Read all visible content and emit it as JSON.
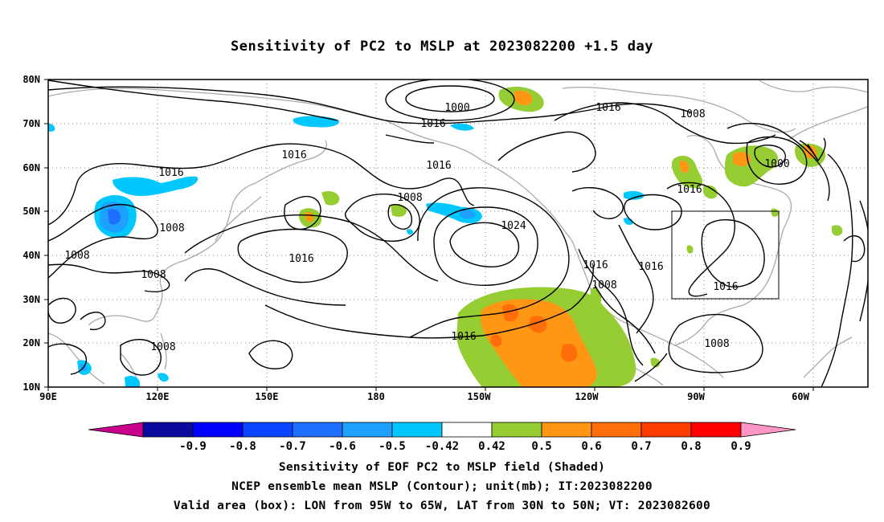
{
  "title": "Sensitivity of PC2 to MSLP at 2023082200 +1.5 day",
  "lat_ticks": [
    "80N",
    "70N",
    "60N",
    "50N",
    "40N",
    "30N",
    "20N",
    "10N"
  ],
  "lon_ticks": [
    "90E",
    "120E",
    "150E",
    "180",
    "150W",
    "120W",
    "90W",
    "60W"
  ],
  "contour_labels": [
    "1000",
    "1016",
    "1016",
    "1008",
    "1016",
    "1016",
    "1008",
    "1000",
    "1016",
    "1008",
    "1008",
    "1024",
    "1008",
    "1016",
    "1016",
    "1016",
    "1016",
    "1008",
    "1008",
    "1016",
    "1008",
    "1016"
  ],
  "colorbar": {
    "labels": [
      "-0.9",
      "-0.8",
      "-0.7",
      "-0.6",
      "-0.5",
      "-0.42",
      "0.42",
      "0.5",
      "0.6",
      "0.7",
      "0.8",
      "0.9"
    ],
    "colors": [
      "#c8008c",
      "#0a0a9e",
      "#0000ff",
      "#0a46ff",
      "#1e6eff",
      "#1ea0ff",
      "#00c8ff",
      "#ffffff",
      "#96cd32",
      "#ff9614",
      "#ff6e0a",
      "#ff3c00",
      "#ff0000",
      "#ff96c8"
    ]
  },
  "footer": [
    "Sensitivity of EOF PC2 to MSLP field (Shaded)",
    "NCEP ensemble mean MSLP (Contour); unit(mb); IT:2023082200",
    "Valid area (box): LON from 95W to 65W, LAT from 30N to 50N; VT: 2023082600"
  ]
}
